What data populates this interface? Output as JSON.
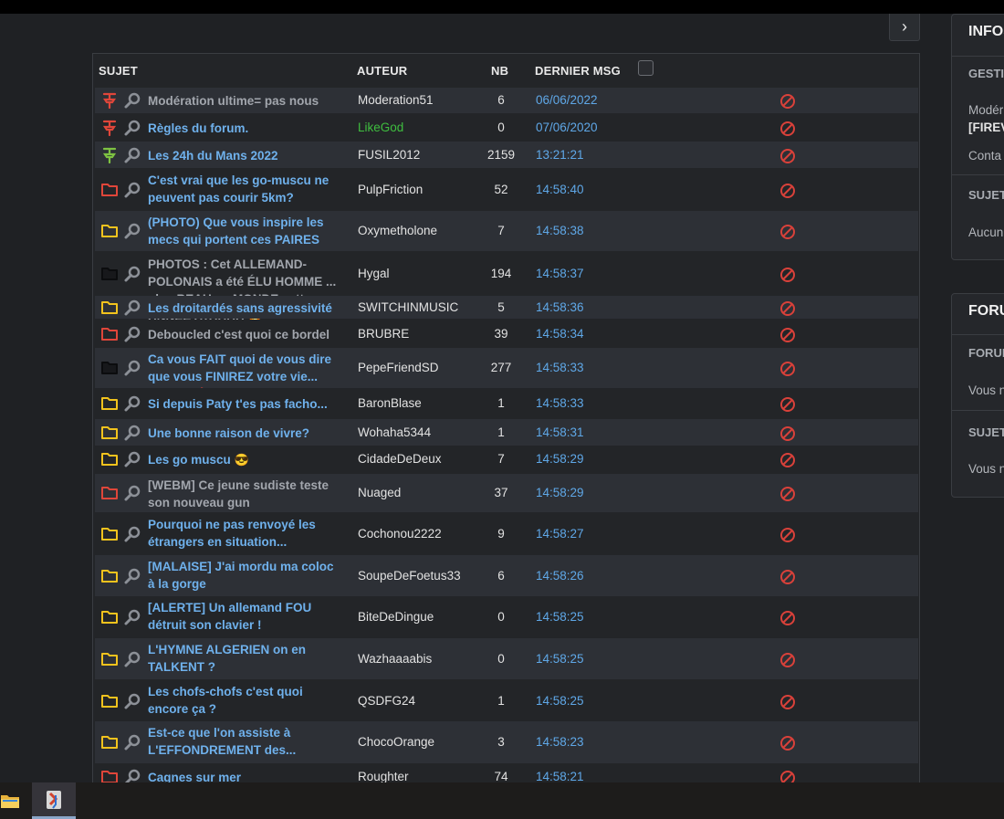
{
  "nav": {
    "next_label": "›"
  },
  "table": {
    "headers": {
      "subject": "SUJET",
      "author": "AUTEUR",
      "count": "NB",
      "last_msg": "DERNIER MSG"
    },
    "rows": [
      {
        "type": "pin-red",
        "title": "Modération ultime= pas nous",
        "title_color": "muted",
        "author": "Moderation51",
        "author_color": "",
        "count": "6",
        "last": "06/06/2022"
      },
      {
        "type": "pin-red",
        "title": "Règles du forum.",
        "title_color": "link",
        "author": "LikeGod",
        "author_color": "green",
        "count": "0",
        "last": "07/06/2020"
      },
      {
        "type": "pin-green",
        "title": "Les 24h du Mans 2022",
        "title_color": "link",
        "author": "FUSIL2012",
        "author_color": "",
        "count": "2159",
        "last": "13:21:21"
      },
      {
        "type": "folder-red",
        "title": "C'est vrai que les go-muscu ne peuvent pas courir 5km?",
        "title_color": "link",
        "author": "PulpFriction",
        "author_color": "",
        "count": "52",
        "last": "14:58:40"
      },
      {
        "type": "folder-yellow",
        "title": "(PHOTO) Que vous inspire les mecs qui portent ces PAIRES",
        "title_color": "link",
        "author": "Oxymetholone",
        "author_color": "",
        "count": "7",
        "last": "14:58:38"
      },
      {
        "type": "folder-dark",
        "title": "PHOTOS : Cet ALLEMAND-POLONAIS a été ÉLU HOMME ... plus BEAU au MONDE cette ANNÉE AYAAAA",
        "title_color": "muted",
        "author": "Hygal",
        "author_color": "",
        "count": "194",
        "last": "14:58:37",
        "emoji": "🔥"
      },
      {
        "type": "folder-yellow",
        "title": "Les droitardés sans agressivité",
        "title_color": "link",
        "author": "SWITCHINMUSIC",
        "author_color": "",
        "count": "5",
        "last": "14:58:36"
      },
      {
        "type": "folder-red",
        "title": "Deboucled c'est quoi ce bordel",
        "title_color": "muted",
        "author": "BRUBRE",
        "author_color": "",
        "count": "39",
        "last": "14:58:34"
      },
      {
        "type": "folder-dark",
        "title": "Ca vous FAIT quoi de vous dire que vous FINIREZ votre vie... SEUL ?",
        "title_color": "link",
        "author": "PepeFriendSD",
        "author_color": "",
        "count": "277",
        "last": "14:58:33",
        "emoji": "🔥"
      },
      {
        "type": "folder-yellow",
        "title": "Si depuis Paty t'es pas facho...",
        "title_color": "link",
        "author": "BaronBlase",
        "author_color": "",
        "count": "1",
        "last": "14:58:33"
      },
      {
        "type": "folder-yellow",
        "title": "Une bonne raison de vivre?",
        "title_color": "link",
        "author": "Wohaha5344",
        "author_color": "",
        "count": "1",
        "last": "14:58:31"
      },
      {
        "type": "folder-yellow",
        "title": "Les go muscu",
        "title_color": "link",
        "author": "CidadeDeDeux",
        "author_color": "",
        "count": "7",
        "last": "14:58:29",
        "emoji": "😎"
      },
      {
        "type": "folder-red",
        "title": "[WEBM] Ce jeune sudiste teste son nouveau gun",
        "title_color": "muted",
        "author": "Nuaged",
        "author_color": "",
        "count": "37",
        "last": "14:58:29"
      },
      {
        "type": "folder-yellow",
        "title": "Pourquoi ne pas renvoyé les étrangers en situation...",
        "title_color": "link",
        "author": "Cochonou2222",
        "author_color": "",
        "count": "9",
        "last": "14:58:27"
      },
      {
        "type": "folder-yellow",
        "title": "[MALAISE] J'ai mordu ma coloc à la gorge",
        "title_color": "link",
        "author": "SoupeDeFoetus33",
        "author_color": "",
        "count": "6",
        "last": "14:58:26"
      },
      {
        "type": "folder-yellow",
        "title": "[ALERTE] Un allemand FOU détruit son clavier !",
        "title_color": "link",
        "author": "BiteDeDingue",
        "author_color": "",
        "count": "0",
        "last": "14:58:25"
      },
      {
        "type": "folder-yellow",
        "title": "L'HYMNE ALGERIEN on en TALKENT ?",
        "title_color": "link",
        "author": "Wazhaaaabis",
        "author_color": "",
        "count": "0",
        "last": "14:58:25"
      },
      {
        "type": "folder-yellow",
        "title": "Les chofs-chofs c'est quoi encore ça ?",
        "title_color": "link",
        "author": "QSDFG24",
        "author_color": "",
        "count": "1",
        "last": "14:58:25"
      },
      {
        "type": "folder-yellow",
        "title": "Est-ce que l'on assiste à L'EFFONDREMENT des...",
        "title_color": "link",
        "author": "ChocoOrange",
        "author_color": "",
        "count": "3",
        "last": "14:58:23"
      },
      {
        "type": "folder-red",
        "title": "Cagnes sur mer",
        "title_color": "link",
        "author": "Roughter",
        "author_color": "",
        "count": "74",
        "last": "14:58:21"
      }
    ]
  },
  "sidebar": {
    "card1": {
      "title": "INFOS",
      "sub1": "GESTI",
      "text1": "Modér",
      "bold1": "[FIREV",
      "text2": "Conta",
      "sub2": "SUJET",
      "text3": "Aucun"
    },
    "card2": {
      "title": "FORU",
      "sub1": "FORUI",
      "text1": "Vous n",
      "sub2": "SUJET",
      "text2": "Vous n"
    }
  },
  "colors": {
    "link": "#6fb1ec",
    "muted": "#a2a6ad",
    "ban": "#d9413a",
    "pin_red": "#e0463a",
    "pin_green": "#7ec242",
    "folder_yellow": "#f2c31d",
    "folder_red": "#e0463a",
    "folder_dark": "#15161a"
  }
}
